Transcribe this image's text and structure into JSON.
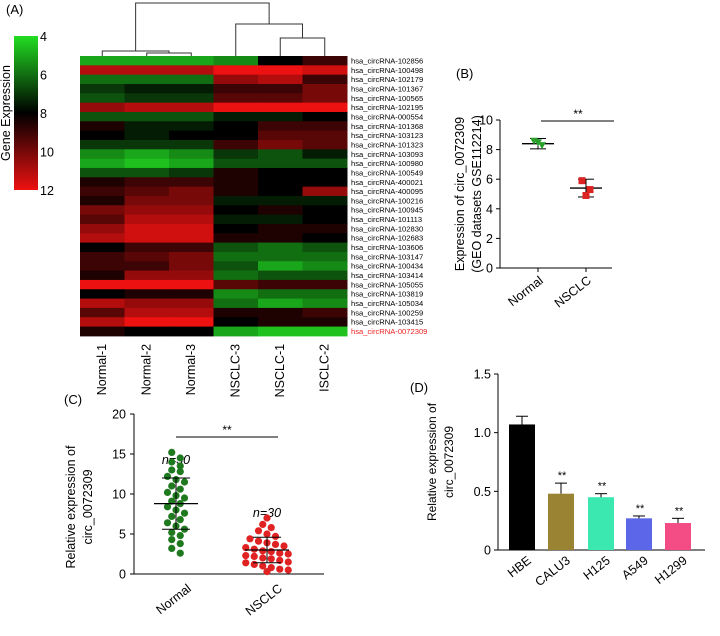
{
  "panels": {
    "a": "(A)",
    "b": "(B)",
    "c": "(C)",
    "d": "(D)"
  },
  "chart_data": [
    {
      "panel": "(A)",
      "type": "heatmap",
      "colorbar_label": "Gene Expression",
      "colorbar_ticks": [
        4,
        6,
        8,
        10,
        12
      ],
      "colorbar_range": [
        4,
        12
      ],
      "colors": {
        "low": "#22dd22",
        "mid": "#000000",
        "high": "#ee1111"
      },
      "columns": [
        "Normal-1",
        "Normal-2",
        "Normal-3",
        "NSCLC-3",
        "NSCLC-1",
        "NSCLC-2"
      ],
      "column_tick_labels": [
        "Normal-1",
        "Normal-2",
        "Normal-3",
        "NSCLC-3",
        "NSCLC-1",
        "ISCLC-2"
      ],
      "rows": [
        "hsa_circRNA-102856",
        "hsa_circRNA-100498",
        "hsa_circRNA-102179",
        "hsa_circRNA-101367",
        "hsa_circRNA-100565",
        "hsa_circRNA-102195",
        "hsa_circRNA-000554",
        "hsa_circRNA-101368",
        "hsa_circRNA-103123",
        "hsa_circRNA-101323",
        "hsa_circRNA-103093",
        "hsa_circRNA-100980",
        "hsa_circRNA-100549",
        "hsa_circRNA-400021",
        "hsa_circRNA-400095",
        "hsa_circRNA-100216",
        "hsa_circRNA-100945",
        "hsa_circRNA-101113",
        "hsa_circRNA-102830",
        "hsa_circRNA-102683",
        "hsa_circRNA-103606",
        "hsa_circRNA-103147",
        "hsa_circRNA-100434",
        "hsa_circRNA-103414",
        "hsa_circRNA-105055",
        "hsa_circRNA-103819",
        "hsa_circRNA-105034",
        "hsa_circRNA-100259",
        "hsa_circRNA-103415",
        "hsa_circRNA-0072309"
      ],
      "highlight_row": "hsa_circRNA-0072309",
      "highlight_color": "#ee2222",
      "values": [
        [
          5.0,
          5.0,
          5.0,
          5.5,
          8.0,
          9.0
        ],
        [
          11.0,
          11.0,
          11.0,
          12.0,
          12.0,
          11.5
        ],
        [
          6.0,
          6.0,
          6.0,
          10.5,
          11.0,
          9.0
        ],
        [
          7.0,
          7.5,
          7.5,
          9.0,
          9.0,
          10.0
        ],
        [
          6.5,
          7.0,
          7.0,
          9.5,
          9.5,
          10.0
        ],
        [
          10.5,
          11.0,
          11.0,
          12.0,
          12.0,
          12.0
        ],
        [
          6.5,
          6.5,
          6.5,
          7.5,
          7.5,
          8.0
        ],
        [
          8.5,
          7.5,
          7.5,
          8.0,
          9.0,
          9.0
        ],
        [
          8.0,
          7.5,
          8.0,
          8.0,
          9.5,
          9.5
        ],
        [
          7.0,
          7.0,
          7.0,
          9.0,
          10.0,
          9.5
        ],
        [
          5.5,
          5.0,
          5.5,
          7.0,
          6.5,
          7.5
        ],
        [
          5.0,
          4.5,
          5.0,
          6.5,
          6.5,
          6.5
        ],
        [
          6.5,
          6.5,
          7.0,
          8.5,
          8.0,
          8.0
        ],
        [
          8.5,
          9.0,
          9.0,
          8.5,
          8.0,
          8.0
        ],
        [
          9.0,
          9.5,
          10.0,
          8.5,
          8.0,
          10.5
        ],
        [
          8.5,
          10.0,
          10.0,
          7.5,
          7.5,
          7.5
        ],
        [
          10.0,
          10.5,
          10.5,
          8.0,
          8.5,
          8.0
        ],
        [
          9.5,
          11.0,
          11.0,
          7.5,
          7.5,
          8.0
        ],
        [
          10.5,
          11.5,
          11.5,
          8.0,
          8.5,
          8.5
        ],
        [
          11.0,
          11.5,
          11.5,
          8.5,
          8.5,
          8.0
        ],
        [
          8.0,
          9.0,
          9.0,
          6.5,
          6.0,
          6.5
        ],
        [
          9.0,
          9.5,
          10.0,
          6.0,
          6.0,
          6.0
        ],
        [
          9.0,
          9.0,
          10.0,
          6.5,
          5.0,
          5.5
        ],
        [
          8.5,
          10.5,
          10.5,
          6.0,
          6.5,
          6.5
        ],
        [
          12.0,
          12.0,
          12.0,
          9.5,
          9.0,
          9.0
        ],
        [
          8.0,
          8.5,
          8.5,
          5.5,
          6.0,
          6.0
        ],
        [
          11.0,
          10.5,
          10.5,
          6.0,
          5.0,
          5.5
        ],
        [
          9.5,
          11.0,
          11.0,
          8.5,
          8.5,
          9.0
        ],
        [
          11.0,
          12.0,
          12.0,
          8.0,
          8.5,
          8.5
        ],
        [
          8.5,
          8.0,
          8.0,
          5.0,
          4.5,
          4.5
        ]
      ]
    },
    {
      "panel": "(B)",
      "type": "scatter",
      "ylabel_line1": "Expression of circ_0072309",
      "ylabel_line2": "(GEO datasets GSE112214)",
      "categories": [
        "Normal",
        "NSCLC"
      ],
      "ylim": [
        0,
        10
      ],
      "yticks": [
        0,
        2,
        4,
        6,
        8,
        10
      ],
      "significance": "**",
      "series": [
        {
          "category": "Normal",
          "color": "#2aa02a",
          "points": [
            8.6,
            8.3,
            8.5
          ],
          "mean": 8.4,
          "sd": 0.35
        },
        {
          "category": "NSCLC",
          "color": "#dd2222",
          "points": [
            5.9,
            5.3,
            4.9
          ],
          "mean": 5.4,
          "sd": 0.6
        }
      ]
    },
    {
      "panel": "(C)",
      "type": "scatter",
      "ylabel_line1": "Relative expression of",
      "ylabel_line2": "circ_0072309",
      "categories": [
        "Normal",
        "NSCLC"
      ],
      "ylim": [
        0,
        20
      ],
      "yticks": [
        0,
        5,
        10,
        15,
        20
      ],
      "significance": "**",
      "annotations": [
        "n=30",
        "n=30"
      ],
      "series": [
        {
          "category": "Normal",
          "color": "#1f7a1f",
          "mean": 8.8,
          "sd": 3.2,
          "points": [
            15.2,
            14.5,
            14.0,
            13.5,
            13.0,
            12.8,
            12.2,
            11.8,
            11.5,
            11.0,
            10.6,
            10.2,
            9.8,
            9.5,
            9.1,
            8.8,
            8.4,
            8.0,
            7.6,
            7.2,
            6.8,
            6.4,
            6.0,
            5.6,
            5.2,
            4.8,
            4.3,
            3.8,
            3.2,
            2.6
          ]
        },
        {
          "category": "NSCLC",
          "color": "#e02222",
          "mean": 3.0,
          "sd": 1.6,
          "points": [
            7.0,
            6.2,
            5.8,
            5.4,
            5.0,
            4.7,
            4.4,
            4.1,
            3.9,
            3.7,
            3.5,
            3.3,
            3.1,
            2.9,
            2.8,
            2.6,
            2.5,
            2.3,
            2.2,
            2.0,
            1.9,
            1.7,
            1.5,
            1.4,
            1.2,
            1.0,
            0.8,
            0.6,
            0.5,
            0.3
          ]
        }
      ]
    },
    {
      "panel": "(D)",
      "type": "bar",
      "ylabel_line1": "Relative expression of",
      "ylabel_line2": "circ_0072309",
      "categories": [
        "HBE",
        "CALU3",
        "H125",
        "A549",
        "H1299"
      ],
      "values": [
        1.07,
        0.48,
        0.45,
        0.27,
        0.23
      ],
      "errors": [
        0.07,
        0.09,
        0.03,
        0.02,
        0.04
      ],
      "significance": [
        "",
        "**",
        "**",
        "**",
        "**"
      ],
      "colors": [
        "#000000",
        "#9a8433",
        "#3be8b0",
        "#5b67e8",
        "#f44d86"
      ],
      "ylim": [
        0,
        1.5
      ],
      "yticks": [
        0,
        0.5,
        1.0,
        1.5
      ],
      "ytick_labels": [
        "0",
        "0.5",
        "1.0",
        "1.5"
      ]
    }
  ]
}
